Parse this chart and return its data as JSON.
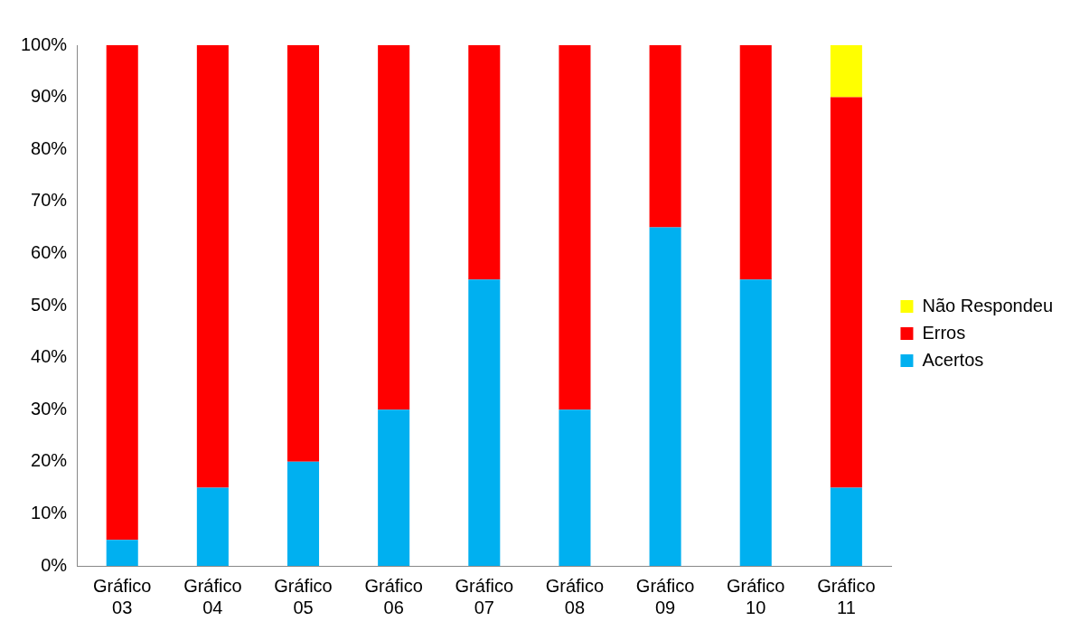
{
  "chart_data": {
    "type": "bar",
    "stacked": true,
    "categories": [
      "Gráfico 03",
      "Gráfico 04",
      "Gráfico 05",
      "Gráfico 06",
      "Gráfico 07",
      "Gráfico 08",
      "Gráfico 09",
      "Gráfico 10",
      "Gráfico 11"
    ],
    "series": [
      {
        "name": "Acertos",
        "color": "#00b0f0",
        "values": [
          5,
          15,
          20,
          30,
          55,
          30,
          65,
          55,
          15
        ]
      },
      {
        "name": "Erros",
        "color": "#ff0000",
        "values": [
          95,
          85,
          80,
          70,
          45,
          70,
          35,
          45,
          75
        ]
      },
      {
        "name": "Não Respondeu",
        "color": "#ffff00",
        "values": [
          0,
          0,
          0,
          0,
          0,
          0,
          0,
          0,
          10
        ]
      }
    ],
    "ylim": [
      0,
      100
    ],
    "yticks": [
      {
        "value": 0,
        "label": "0%"
      },
      {
        "value": 10,
        "label": "10%"
      },
      {
        "value": 20,
        "label": "20%"
      },
      {
        "value": 30,
        "label": "30%"
      },
      {
        "value": 40,
        "label": "40%"
      },
      {
        "value": 50,
        "label": "50%"
      },
      {
        "value": 60,
        "label": "60%"
      },
      {
        "value": 70,
        "label": "70%"
      },
      {
        "value": 80,
        "label": "80%"
      },
      {
        "value": 90,
        "label": "90%"
      },
      {
        "value": 100,
        "label": "100%"
      }
    ],
    "grid": false,
    "legend": "right"
  }
}
